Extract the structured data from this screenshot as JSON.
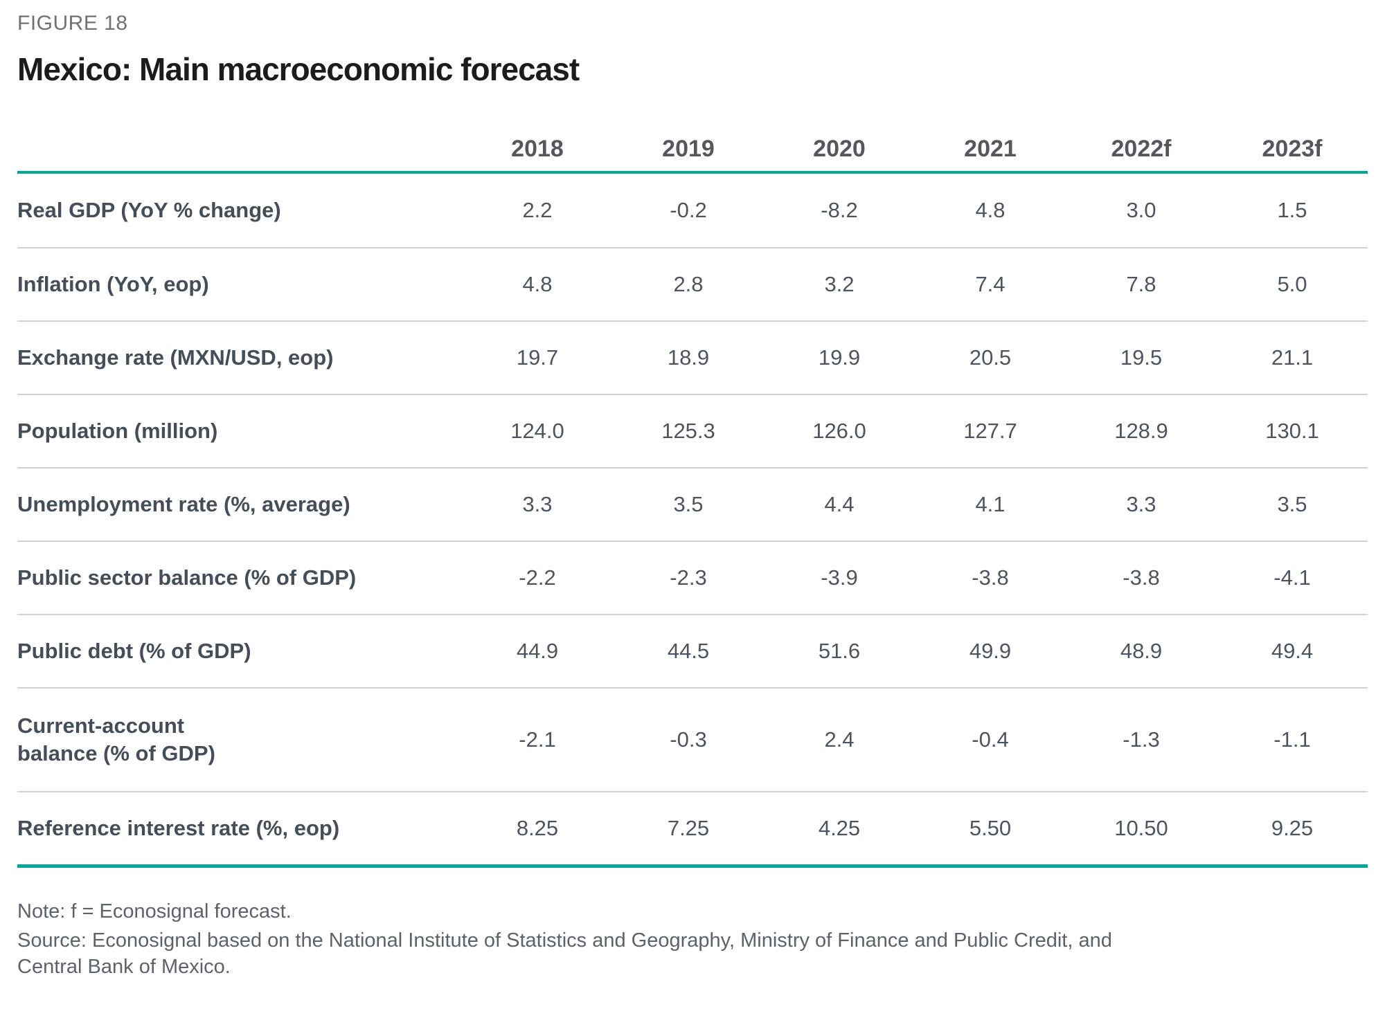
{
  "figure_label": "FIGURE 18",
  "title": "Mexico: Main macroeconomic forecast",
  "chart_data": {
    "type": "table",
    "title": "Mexico: Main macroeconomic forecast",
    "columns": [
      "2018",
      "2019",
      "2020",
      "2021",
      "2022f",
      "2023f"
    ],
    "rows": [
      {
        "label": "Real GDP (YoY % change)",
        "values": [
          "2.2",
          "-0.2",
          "-8.2",
          "4.8",
          "3.0",
          "1.5"
        ]
      },
      {
        "label": "Inflation (YoY, eop)",
        "values": [
          "4.8",
          "2.8",
          "3.2",
          "7.4",
          "7.8",
          "5.0"
        ]
      },
      {
        "label": "Exchange rate (MXN/USD, eop)",
        "values": [
          "19.7",
          "18.9",
          "19.9",
          "20.5",
          "19.5",
          "21.1"
        ]
      },
      {
        "label": "Population (million)",
        "values": [
          "124.0",
          "125.3",
          "126.0",
          "127.7",
          "128.9",
          "130.1"
        ]
      },
      {
        "label": "Unemployment rate (%, average)",
        "values": [
          "3.3",
          "3.5",
          "4.4",
          "4.1",
          "3.3",
          "3.5"
        ]
      },
      {
        "label": "Public sector balance (% of GDP)",
        "values": [
          "-2.2",
          "-2.3",
          "-3.9",
          "-3.8",
          "-3.8",
          "-4.1"
        ]
      },
      {
        "label": "Public debt (% of GDP)",
        "values": [
          "44.9",
          "44.5",
          "51.6",
          "49.9",
          "48.9",
          "49.4"
        ]
      },
      {
        "label": "Current-account\nbalance (% of GDP)",
        "values": [
          "-2.1",
          "-0.3",
          "2.4",
          "-0.4",
          "-1.3",
          "-1.1"
        ]
      },
      {
        "label": "Reference interest rate (%, eop)",
        "values": [
          "8.25",
          "7.25",
          "4.25",
          "5.50",
          "10.50",
          "9.25"
        ]
      }
    ]
  },
  "notes": {
    "note": "Note: f = Econosignal forecast.",
    "source": "Source: Econosignal based on the National Institute of Statistics and Geography, Ministry of Finance and Public Credit, and\nCentral Bank of Mexico."
  },
  "colors": {
    "accent_teal": "#00a79e",
    "title": "#1c1c1c",
    "figure_label": "#6e7277",
    "header_text": "#54575d",
    "label_text": "#454e58",
    "value_text": "#4c555f",
    "separator": "#d2d2d2",
    "note_text": "#5c626a",
    "background": "#ffffff"
  }
}
